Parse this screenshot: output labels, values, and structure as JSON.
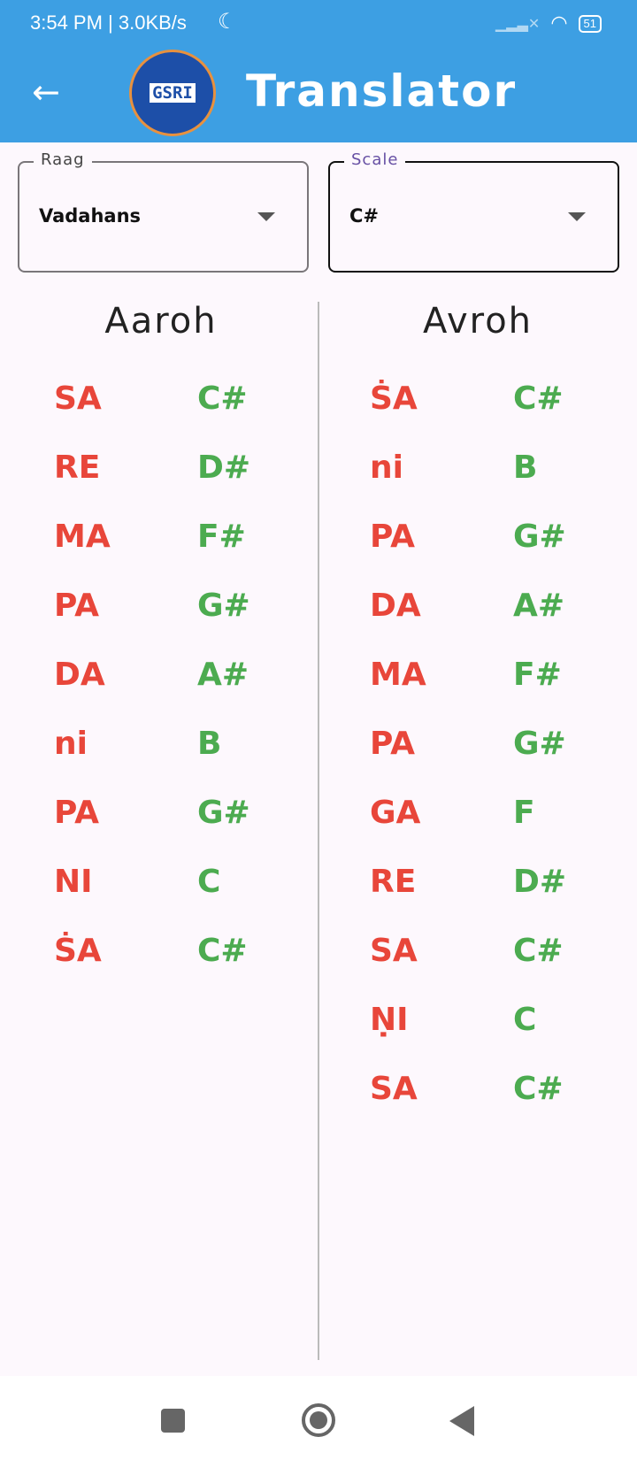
{
  "status_bar": {
    "time": "3:54 PM | 3.0KB/s",
    "battery": "51",
    "icons": [
      "moon-icon",
      "signal-icon",
      "wifi-icon",
      "battery-icon"
    ]
  },
  "app_bar": {
    "title": "Translator",
    "logo_text": "GSRI",
    "back_icon": "arrow-left-icon"
  },
  "raag": {
    "label": "Raag",
    "value": "Vadahans"
  },
  "scale": {
    "label": "Scale",
    "value": "C#"
  },
  "aaroh": {
    "title": "Aaroh",
    "rows": [
      [
        "SA",
        "C#"
      ],
      [
        "RE",
        "D#"
      ],
      [
        "MA",
        "F#"
      ],
      [
        "PA",
        "G#"
      ],
      [
        "DA",
        "A#"
      ],
      [
        "ni",
        "B"
      ],
      [
        "PA",
        "G#"
      ],
      [
        "NI",
        "C"
      ],
      [
        "ṠA",
        "C#"
      ]
    ]
  },
  "avroh": {
    "title": "Avroh",
    "rows": [
      [
        "ṠA",
        "C#"
      ],
      [
        "ni",
        "B"
      ],
      [
        "PA",
        "G#"
      ],
      [
        "DA",
        "A#"
      ],
      [
        "MA",
        "F#"
      ],
      [
        "PA",
        "G#"
      ],
      [
        "GA",
        "F"
      ],
      [
        "RE",
        "D#"
      ],
      [
        "SA",
        "C#"
      ],
      [
        "ṆI",
        "C"
      ],
      [
        "SA",
        "C#"
      ]
    ]
  },
  "colors": {
    "appbar": "#3d9fe3",
    "swar": "#e8463a",
    "note": "#4cab50"
  }
}
